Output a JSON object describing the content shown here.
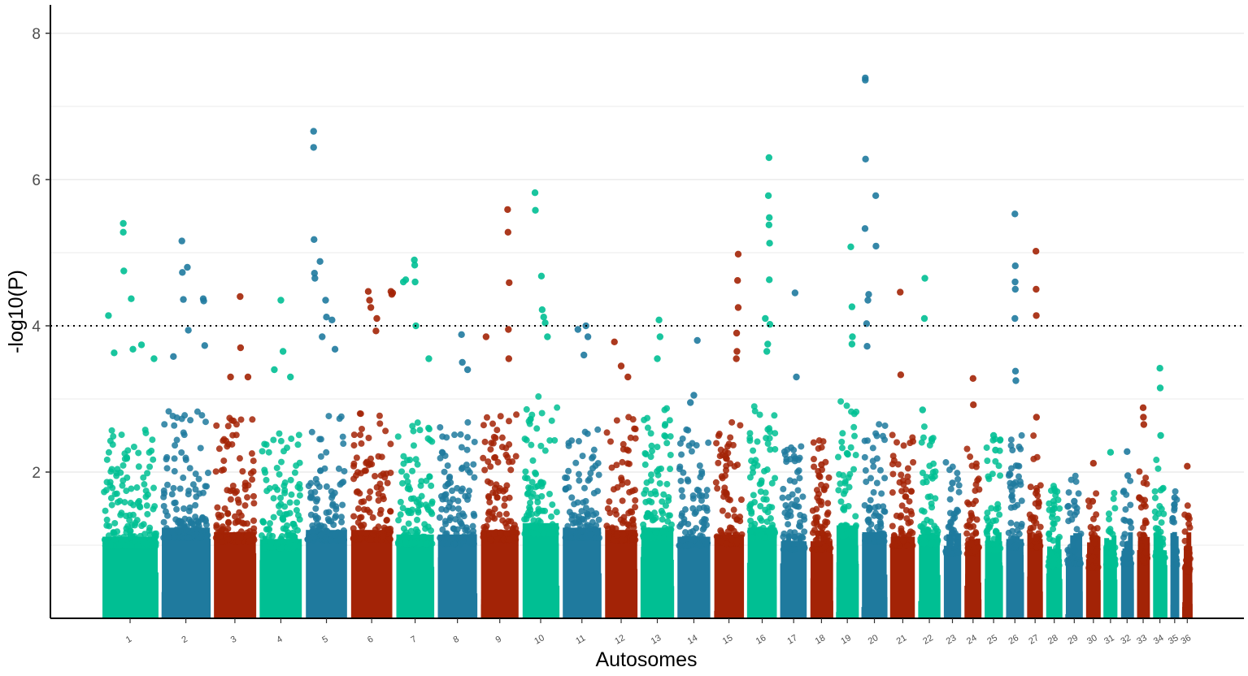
{
  "chart_data": {
    "type": "scatter",
    "subtype": "manhattan",
    "title": "",
    "xlabel": "Autosomes",
    "ylabel": "-log10(P)",
    "ylim": [
      0,
      8.4
    ],
    "yticks": [
      2,
      4,
      6,
      8
    ],
    "ytick_labels": [
      "2",
      "4",
      "6",
      "8"
    ],
    "threshold": 4,
    "grid": true,
    "palette": [
      "#00BF93",
      "#1F7A9E",
      "#A32306"
    ],
    "chromosomes": [
      {
        "label": "1",
        "length": 157,
        "color": 0,
        "base": 1.8,
        "points": [
          [
            0.12,
            4.14
          ],
          [
            0.22,
            3.63
          ],
          [
            0.38,
            5.4
          ],
          [
            0.38,
            5.28
          ],
          [
            0.39,
            4.75
          ],
          [
            0.52,
            4.37
          ],
          [
            0.55,
            3.68
          ],
          [
            0.7,
            3.74
          ],
          [
            0.92,
            3.55
          ]
        ]
      },
      {
        "label": "2",
        "length": 137,
        "color": 1,
        "base": 2.0,
        "points": [
          [
            0.25,
            3.58
          ],
          [
            0.42,
            5.16
          ],
          [
            0.43,
            4.73
          ],
          [
            0.45,
            4.36
          ],
          [
            0.53,
            4.8
          ],
          [
            0.55,
            3.94
          ],
          [
            0.85,
            4.37
          ],
          [
            0.86,
            4.34
          ],
          [
            0.88,
            3.73
          ]
        ]
      },
      {
        "label": "3",
        "length": 120,
        "color": 2,
        "base": 1.9,
        "points": [
          [
            0.4,
            3.3
          ],
          [
            0.62,
            4.4
          ],
          [
            0.63,
            3.7
          ],
          [
            0.8,
            3.3
          ]
        ]
      },
      {
        "label": "4",
        "length": 120,
        "color": 0,
        "base": 1.75,
        "points": [
          [
            0.35,
            3.4
          ],
          [
            0.5,
            4.35
          ],
          [
            0.55,
            3.65
          ],
          [
            0.72,
            3.3
          ]
        ]
      },
      {
        "label": "5",
        "length": 118,
        "color": 1,
        "base": 1.95,
        "points": [
          [
            0.2,
            6.66
          ],
          [
            0.2,
            6.44
          ],
          [
            0.21,
            5.18
          ],
          [
            0.22,
            4.72
          ],
          [
            0.23,
            4.65
          ],
          [
            0.35,
            4.88
          ],
          [
            0.4,
            3.85
          ],
          [
            0.48,
            4.35
          ],
          [
            0.5,
            4.12
          ],
          [
            0.63,
            4.08
          ],
          [
            0.7,
            3.68
          ]
        ]
      },
      {
        "label": "6",
        "length": 118,
        "color": 2,
        "base": 1.95,
        "points": [
          [
            0.42,
            4.47
          ],
          [
            0.45,
            4.35
          ],
          [
            0.48,
            4.25
          ],
          [
            0.6,
            3.93
          ],
          [
            0.62,
            4.1
          ],
          [
            0.95,
            4.47
          ],
          [
            0.97,
            4.43
          ],
          [
            0.99,
            4.45
          ]
        ]
      },
      {
        "label": "7",
        "length": 108,
        "color": 0,
        "base": 1.85,
        "points": [
          [
            0.2,
            4.6
          ],
          [
            0.26,
            4.63
          ],
          [
            0.48,
            4.9
          ],
          [
            0.49,
            4.83
          ],
          [
            0.5,
            4.6
          ],
          [
            0.52,
            4.0
          ],
          [
            0.85,
            3.55
          ]
        ]
      },
      {
        "label": "8",
        "length": 112,
        "color": 1,
        "base": 1.85,
        "points": [
          [
            0.6,
            3.88
          ],
          [
            0.62,
            3.5
          ],
          [
            0.75,
            3.4
          ]
        ]
      },
      {
        "label": "9",
        "length": 108,
        "color": 2,
        "base": 1.95,
        "points": [
          [
            0.15,
            3.85
          ],
          [
            0.7,
            5.59
          ],
          [
            0.71,
            5.28
          ],
          [
            0.74,
            4.59
          ],
          [
            0.72,
            3.95
          ],
          [
            0.73,
            3.55
          ]
        ]
      },
      {
        "label": "10",
        "length": 104,
        "color": 0,
        "base": 2.1,
        "points": [
          [
            0.35,
            5.82
          ],
          [
            0.36,
            5.58
          ],
          [
            0.52,
            4.68
          ],
          [
            0.54,
            4.22
          ],
          [
            0.58,
            4.12
          ],
          [
            0.62,
            4.04
          ],
          [
            0.68,
            3.85
          ]
        ]
      },
      {
        "label": "11",
        "length": 110,
        "color": 1,
        "base": 2.0,
        "points": [
          [
            0.4,
            3.95
          ],
          [
            0.6,
            4.0
          ],
          [
            0.65,
            3.85
          ],
          [
            0.55,
            3.6
          ]
        ]
      },
      {
        "label": "12",
        "length": 93,
        "color": 2,
        "base": 1.95,
        "points": [
          [
            0.3,
            3.78
          ],
          [
            0.5,
            3.45
          ],
          [
            0.7,
            3.3
          ]
        ]
      },
      {
        "label": "13",
        "length": 93,
        "color": 0,
        "base": 2.0,
        "points": [
          [
            0.55,
            4.08
          ],
          [
            0.58,
            3.85
          ],
          [
            0.5,
            3.55
          ]
        ]
      },
      {
        "label": "14",
        "length": 95,
        "color": 1,
        "base": 1.8,
        "points": [
          [
            0.6,
            3.8
          ],
          [
            0.5,
            3.05
          ],
          [
            0.4,
            2.95
          ]
        ]
      },
      {
        "label": "15",
        "length": 85,
        "color": 2,
        "base": 1.85,
        "points": [
          [
            0.8,
            4.98
          ],
          [
            0.78,
            4.62
          ],
          [
            0.8,
            4.25
          ],
          [
            0.75,
            3.9
          ],
          [
            0.76,
            3.65
          ],
          [
            0.74,
            3.55
          ]
        ]
      },
      {
        "label": "16",
        "length": 85,
        "color": 0,
        "base": 2.0,
        "points": [
          [
            0.72,
            6.3
          ],
          [
            0.7,
            5.78
          ],
          [
            0.73,
            5.48
          ],
          [
            0.72,
            5.38
          ],
          [
            0.74,
            5.13
          ],
          [
            0.73,
            4.63
          ],
          [
            0.6,
            4.1
          ],
          [
            0.75,
            4.02
          ],
          [
            0.68,
            3.75
          ],
          [
            0.65,
            3.65
          ]
        ]
      },
      {
        "label": "17",
        "length": 75,
        "color": 1,
        "base": 1.7,
        "points": [
          [
            0.55,
            4.45
          ],
          [
            0.6,
            3.3
          ]
        ]
      },
      {
        "label": "18",
        "length": 65,
        "color": 2,
        "base": 1.7,
        "points": [
          [
            0.5,
            2.1
          ],
          [
            0.4,
            1.95
          ]
        ]
      },
      {
        "label": "19",
        "length": 64,
        "color": 0,
        "base": 2.05,
        "points": [
          [
            0.65,
            5.08
          ],
          [
            0.7,
            4.26
          ],
          [
            0.72,
            3.85
          ],
          [
            0.7,
            3.75
          ]
        ]
      },
      {
        "label": "20",
        "length": 72,
        "color": 1,
        "base": 1.9,
        "points": [
          [
            0.15,
            7.39
          ],
          [
            0.15,
            7.36
          ],
          [
            0.16,
            6.28
          ],
          [
            0.14,
            5.33
          ],
          [
            0.55,
            5.78
          ],
          [
            0.56,
            5.09
          ],
          [
            0.28,
            4.43
          ],
          [
            0.25,
            4.35
          ],
          [
            0.2,
            4.03
          ],
          [
            0.22,
            3.72
          ]
        ]
      },
      {
        "label": "21",
        "length": 71,
        "color": 2,
        "base": 1.8,
        "points": [
          [
            0.4,
            4.46
          ],
          [
            0.42,
            3.33
          ]
        ]
      },
      {
        "label": "22",
        "length": 62,
        "color": 0,
        "base": 1.85,
        "points": [
          [
            0.3,
            4.65
          ],
          [
            0.28,
            4.1
          ],
          [
            0.2,
            2.85
          ]
        ]
      },
      {
        "label": "23",
        "length": 52,
        "color": 1,
        "base": 1.6,
        "points": [
          [
            0.5,
            1.85
          ]
        ]
      },
      {
        "label": "24",
        "length": 48,
        "color": 2,
        "base": 1.6,
        "points": [
          [
            0.5,
            3.28
          ],
          [
            0.52,
            2.92
          ]
        ]
      },
      {
        "label": "25",
        "length": 52,
        "color": 0,
        "base": 1.7,
        "points": [
          [
            0.5,
            2.5
          ],
          [
            0.6,
            2.3
          ]
        ]
      },
      {
        "label": "26",
        "length": 52,
        "color": 1,
        "base": 1.75,
        "points": [
          [
            0.5,
            5.53
          ],
          [
            0.52,
            4.82
          ],
          [
            0.51,
            4.6
          ],
          [
            0.52,
            4.5
          ],
          [
            0.5,
            4.1
          ],
          [
            0.53,
            3.38
          ],
          [
            0.55,
            3.25
          ]
        ]
      },
      {
        "label": "27",
        "length": 46,
        "color": 2,
        "base": 1.75,
        "points": [
          [
            0.55,
            5.02
          ],
          [
            0.56,
            4.5
          ],
          [
            0.57,
            4.14
          ],
          [
            0.58,
            2.75
          ]
        ]
      },
      {
        "label": "28",
        "length": 46,
        "color": 0,
        "base": 1.3,
        "points": [
          [
            0.5,
            1.5
          ]
        ]
      },
      {
        "label": "29",
        "length": 51,
        "color": 1,
        "base": 1.35,
        "points": [
          [
            0.5,
            1.6
          ]
        ]
      },
      {
        "label": "30",
        "length": 41,
        "color": 2,
        "base": 1.25,
        "points": [
          [
            0.5,
            2.12
          ],
          [
            0.45,
            1.6
          ]
        ]
      },
      {
        "label": "31",
        "length": 40,
        "color": 0,
        "base": 1.3,
        "points": [
          [
            0.5,
            2.27
          ]
        ]
      },
      {
        "label": "32",
        "length": 38,
        "color": 1,
        "base": 1.35,
        "points": [
          [
            0.5,
            2.28
          ],
          [
            0.55,
            1.95
          ]
        ]
      },
      {
        "label": "33",
        "length": 37,
        "color": 2,
        "base": 1.4,
        "points": [
          [
            0.5,
            2.88
          ],
          [
            0.52,
            2.75
          ],
          [
            0.55,
            2.65
          ]
        ]
      },
      {
        "label": "34",
        "length": 42,
        "color": 0,
        "base": 1.5,
        "points": [
          [
            0.5,
            3.42
          ],
          [
            0.52,
            3.15
          ],
          [
            0.55,
            2.5
          ]
        ]
      },
      {
        "label": "35",
        "length": 26,
        "color": 1,
        "base": 1.3,
        "points": [
          [
            0.5,
            1.65
          ]
        ]
      },
      {
        "label": "36",
        "length": 30,
        "color": 2,
        "base": 1.15,
        "points": [
          [
            0.5,
            2.08
          ],
          [
            0.6,
            1.4
          ]
        ]
      }
    ]
  }
}
